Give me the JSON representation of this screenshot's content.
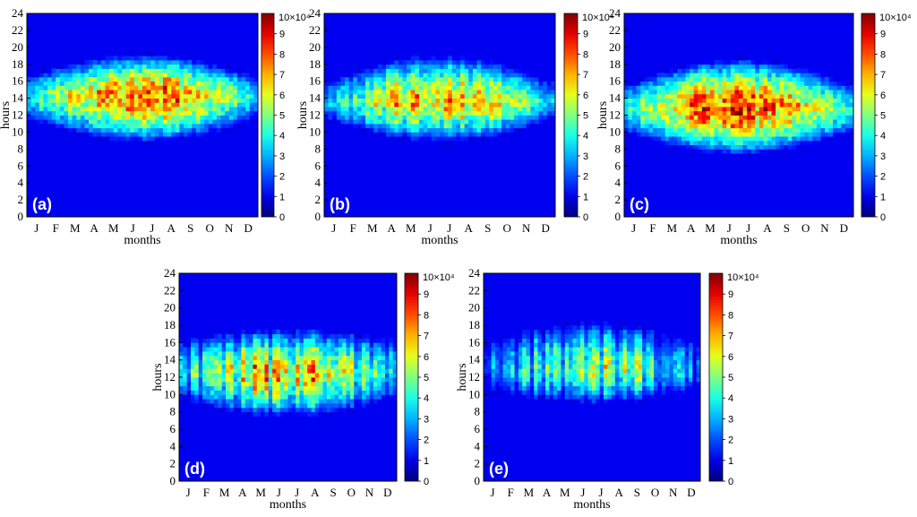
{
  "figure": {
    "colormap": "jet",
    "colorbar_label": "10×10⁴",
    "colorbar_ticks": [
      "0",
      "1",
      "2",
      "3",
      "4",
      "5",
      "6",
      "7",
      "8",
      "9"
    ]
  },
  "chart_data": [
    {
      "type": "heatmap",
      "panel_label": "(a)",
      "xlabel": "months",
      "ylabel": "hours",
      "categories": [
        "J",
        "F",
        "M",
        "A",
        "M",
        "J",
        "J",
        "A",
        "S",
        "O",
        "N",
        "D"
      ],
      "yticks": [
        "0",
        "2",
        "4",
        "6",
        "8",
        "10",
        "12",
        "14",
        "16",
        "18",
        "20",
        "22",
        "24"
      ],
      "ylim": [
        0,
        24
      ],
      "zlim": [
        0,
        10
      ],
      "day_start": {
        "winter": 11,
        "summer": 8.5
      },
      "day_end": {
        "winter": 17,
        "summer": 19.5
      },
      "peak_value": 9,
      "peak_hour": 14.5,
      "stripiness": 0.3
    },
    {
      "type": "heatmap",
      "panel_label": "(b)",
      "xlabel": "months",
      "ylabel": "hours",
      "categories": [
        "J",
        "F",
        "M",
        "A",
        "M",
        "J",
        "J",
        "A",
        "S",
        "O",
        "N",
        "D"
      ],
      "yticks": [
        "0",
        "2",
        "4",
        "6",
        "8",
        "10",
        "12",
        "14",
        "16",
        "18",
        "20",
        "22",
        "24"
      ],
      "ylim": [
        0,
        24
      ],
      "zlim": [
        0,
        10
      ],
      "day_start": {
        "winter": 11,
        "summer": 8.5
      },
      "day_end": {
        "winter": 16.5,
        "summer": 19.5
      },
      "peak_value": 8.5,
      "peak_hour": 13.5,
      "stripiness": 0.45
    },
    {
      "type": "heatmap",
      "panel_label": "(c)",
      "xlabel": "months",
      "ylabel": "hours",
      "categories": [
        "J",
        "F",
        "M",
        "A",
        "M",
        "J",
        "J",
        "A",
        "S",
        "O",
        "N",
        "D"
      ],
      "yticks": [
        "0",
        "2",
        "4",
        "6",
        "8",
        "10",
        "12",
        "14",
        "16",
        "18",
        "20",
        "22",
        "24"
      ],
      "ylim": [
        0,
        24
      ],
      "zlim": [
        0,
        10
      ],
      "day_start": {
        "winter": 9.5,
        "summer": 7
      },
      "day_end": {
        "winter": 16,
        "summer": 19
      },
      "peak_value": 9.5,
      "peak_hour": 13,
      "stripiness": 0.3
    },
    {
      "type": "heatmap",
      "panel_label": "(d)",
      "xlabel": "months",
      "ylabel": "hours",
      "categories": [
        "J",
        "F",
        "M",
        "A",
        "M",
        "J",
        "J",
        "A",
        "S",
        "O",
        "N",
        "D"
      ],
      "yticks": [
        "0",
        "2",
        "4",
        "6",
        "8",
        "10",
        "12",
        "14",
        "16",
        "18",
        "20",
        "22",
        "24"
      ],
      "ylim": [
        0,
        24
      ],
      "zlim": [
        0,
        10
      ],
      "day_start": {
        "winter": 9,
        "summer": 7
      },
      "day_end": {
        "winter": 17,
        "summer": 18
      },
      "peak_value": 9,
      "peak_hour": 12.5,
      "stripiness": 0.7
    },
    {
      "type": "heatmap",
      "panel_label": "(e)",
      "xlabel": "months",
      "ylabel": "hours",
      "categories": [
        "J",
        "F",
        "M",
        "A",
        "M",
        "J",
        "J",
        "A",
        "S",
        "O",
        "N",
        "D"
      ],
      "yticks": [
        "0",
        "2",
        "4",
        "6",
        "8",
        "10",
        "12",
        "14",
        "16",
        "18",
        "20",
        "22",
        "24"
      ],
      "ylim": [
        0,
        24
      ],
      "zlim": [
        0,
        10
      ],
      "day_start": {
        "winter": 10,
        "summer": 8.5
      },
      "day_end": {
        "winter": 17,
        "summer": 19
      },
      "peak_value": 7.5,
      "peak_hour": 12.5,
      "stripiness": 0.85
    }
  ]
}
